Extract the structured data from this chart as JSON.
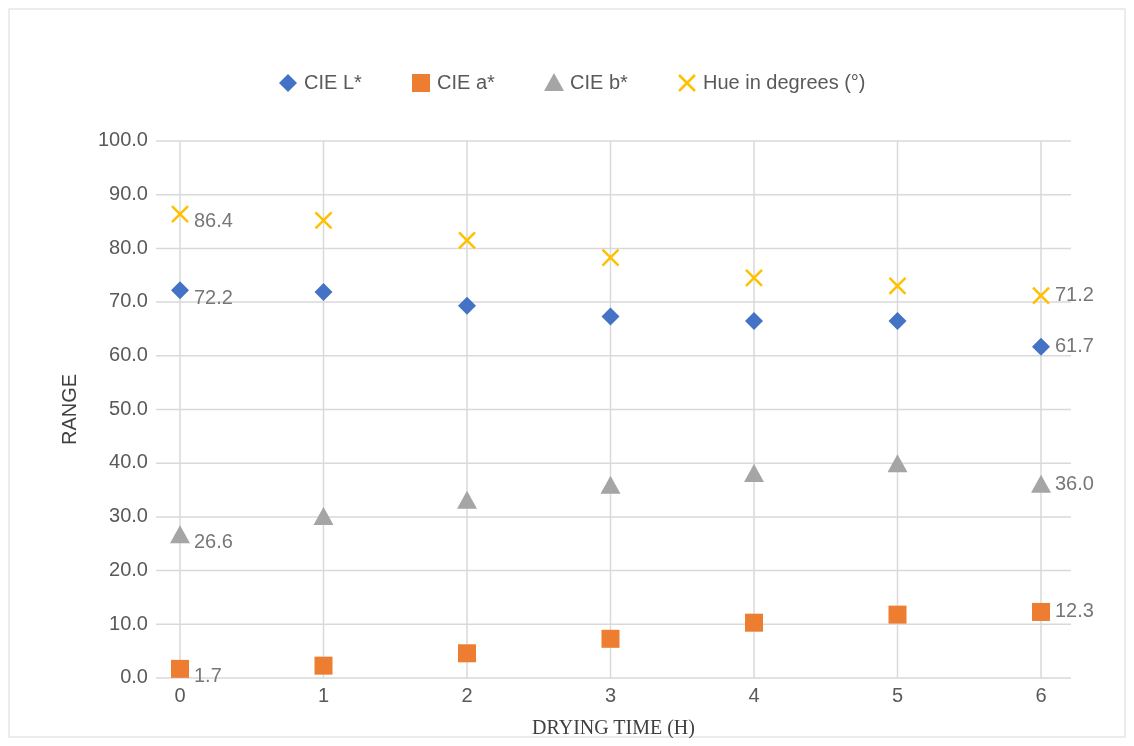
{
  "chart_data": {
    "type": "scatter",
    "xlabel": "DRYING TIME (H)",
    "ylabel": "RANGE",
    "x": [
      0,
      1,
      2,
      3,
      4,
      5,
      6
    ],
    "xlim": [
      0,
      6
    ],
    "xticks": [
      0,
      1,
      2,
      3,
      4,
      5,
      6
    ],
    "ylim": [
      0,
      100
    ],
    "yticks": [
      {
        "value": 0,
        "label": "0.0"
      },
      {
        "value": 10,
        "label": "10.0"
      },
      {
        "value": 20,
        "label": "20.0"
      },
      {
        "value": 30,
        "label": "30.0"
      },
      {
        "value": 40,
        "label": "40.0"
      },
      {
        "value": 50,
        "label": "50.0"
      },
      {
        "value": 60,
        "label": "60.0"
      },
      {
        "value": 70,
        "label": "70.0"
      },
      {
        "value": 80,
        "label": "80.0"
      },
      {
        "value": 90,
        "label": "90.0"
      },
      {
        "value": 100,
        "label": "100.0"
      }
    ],
    "grid": true,
    "legend": "top",
    "series": [
      {
        "name": "CIE L*",
        "color": "#4472c4",
        "marker": "diamond",
        "values": [
          72.2,
          71.9,
          69.3,
          67.3,
          66.5,
          66.5,
          61.7
        ],
        "value_labels": [
          "72.2",
          null,
          null,
          null,
          null,
          null,
          "61.7"
        ]
      },
      {
        "name": "CIE a*",
        "color": "#ed7d31",
        "marker": "square",
        "values": [
          1.7,
          2.3,
          4.6,
          7.3,
          10.3,
          11.8,
          12.3
        ],
        "value_labels": [
          "1.7",
          null,
          null,
          null,
          null,
          null,
          "12.3"
        ]
      },
      {
        "name": "CIE b*",
        "color": "#a5a5a5",
        "marker": "triangle",
        "values": [
          26.6,
          30.0,
          33.0,
          35.8,
          38.0,
          39.8,
          36.0
        ],
        "value_labels": [
          "26.6",
          null,
          null,
          null,
          null,
          null,
          "36.0"
        ]
      },
      {
        "name": "Hue in degrees (°)",
        "color": "#ffc000",
        "marker": "cross",
        "values": [
          86.4,
          85.2,
          81.5,
          78.3,
          74.5,
          73.0,
          71.2
        ],
        "value_labels": [
          "86.4",
          null,
          null,
          null,
          null,
          null,
          "71.2"
        ]
      }
    ]
  }
}
